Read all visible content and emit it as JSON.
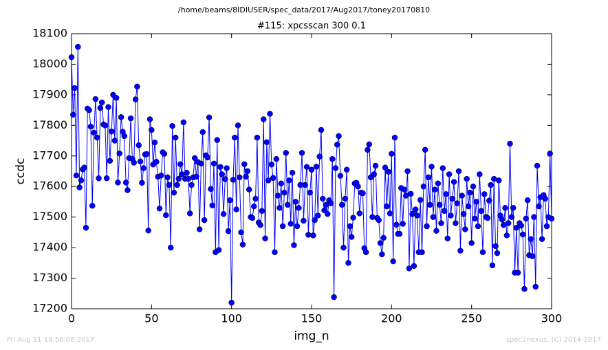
{
  "header": "/home/beams/8IDIUSER/spec_data/2017/Aug2017/toney20170810",
  "footer": {
    "left": "Fri Aug 11 19:58:08 2017",
    "right": "spec2nexus, (C) 2014-2017"
  },
  "chart_data": {
    "type": "line",
    "title": "#115: xpcsscan 300 0.1",
    "x_label": "img_n",
    "y_label": "ccdc",
    "xlim": [
      0,
      300
    ],
    "xticks": [
      0,
      50,
      100,
      150,
      200,
      250,
      300
    ],
    "ylim": [
      17200,
      18100
    ],
    "yticks": [
      17200,
      17300,
      17400,
      17500,
      17600,
      17700,
      17800,
      17900,
      18000,
      18100
    ],
    "x": [
      0,
      1,
      2,
      3,
      4,
      5,
      6,
      7,
      8,
      9,
      10,
      11,
      12,
      13,
      14,
      15,
      16,
      17,
      18,
      19,
      20,
      21,
      22,
      23,
      24,
      25,
      26,
      27,
      28,
      29,
      30,
      31,
      32,
      33,
      34,
      35,
      36,
      37,
      38,
      39,
      40,
      41,
      42,
      43,
      44,
      45,
      46,
      47,
      48,
      49,
      50,
      51,
      52,
      53,
      54,
      55,
      56,
      57,
      58,
      59,
      60,
      61,
      62,
      63,
      64,
      65,
      66,
      67,
      68,
      69,
      70,
      71,
      72,
      73,
      74,
      75,
      76,
      77,
      78,
      79,
      80,
      81,
      82,
      83,
      84,
      85,
      86,
      87,
      88,
      89,
      90,
      91,
      92,
      93,
      94,
      95,
      96,
      97,
      98,
      99,
      100,
      101,
      102,
      103,
      104,
      105,
      106,
      107,
      108,
      109,
      110,
      111,
      112,
      113,
      114,
      115,
      116,
      117,
      118,
      119,
      120,
      121,
      122,
      123,
      124,
      125,
      126,
      127,
      128,
      129,
      130,
      131,
      132,
      133,
      134,
      135,
      136,
      137,
      138,
      139,
      140,
      141,
      142,
      143,
      144,
      145,
      146,
      147,
      148,
      149,
      150,
      151,
      152,
      153,
      154,
      155,
      156,
      157,
      158,
      159,
      160,
      161,
      162,
      163,
      164,
      165,
      166,
      167,
      168,
      169,
      170,
      171,
      172,
      173,
      174,
      175,
      176,
      177,
      178,
      179,
      180,
      181,
      182,
      183,
      184,
      185,
      186,
      187,
      188,
      189,
      190,
      191,
      192,
      193,
      194,
      195,
      196,
      197,
      198,
      199,
      200,
      201,
      202,
      203,
      204,
      205,
      206,
      207,
      208,
      209,
      210,
      211,
      212,
      213,
      214,
      215,
      216,
      217,
      218,
      219,
      220,
      221,
      222,
      223,
      224,
      225,
      226,
      227,
      228,
      229,
      230,
      231,
      232,
      233,
      234,
      235,
      236,
      237,
      238,
      239,
      240,
      241,
      242,
      243,
      244,
      245,
      246,
      247,
      248,
      249,
      250,
      251,
      252,
      253,
      254,
      255,
      256,
      257,
      258,
      259,
      260,
      261,
      262,
      263,
      264,
      265,
      266,
      267,
      268,
      269,
      270,
      271,
      272,
      273,
      274,
      275,
      276,
      277,
      278,
      279,
      280,
      281,
      282,
      283,
      284,
      285,
      286,
      287,
      288,
      289,
      290,
      291,
      292,
      293,
      294,
      295,
      296,
      297,
      298,
      299,
      300
    ],
    "series": [
      {
        "color": "#0000ff",
        "values": [
          18023,
          17835,
          17922,
          17636,
          18057,
          17597,
          17620,
          17656,
          17662,
          17465,
          17855,
          17850,
          17796,
          17537,
          17776,
          17886,
          17760,
          17627,
          17857,
          17875,
          17803,
          17800,
          17627,
          17860,
          17684,
          17780,
          17900,
          17750,
          17890,
          17613,
          17708,
          17827,
          17779,
          17765,
          17613,
          17588,
          17693,
          17823,
          17690,
          17678,
          17885,
          17927,
          17735,
          17682,
          17612,
          17660,
          17705,
          17706,
          17456,
          17820,
          17785,
          17672,
          17744,
          17681,
          17632,
          17528,
          17636,
          17712,
          17707,
          17506,
          17630,
          17605,
          17400,
          17798,
          17580,
          17760,
          17605,
          17625,
          17673,
          17640,
          17810,
          17625,
          17645,
          17625,
          17512,
          17605,
          17630,
          17693,
          17632,
          17680,
          17460,
          17675,
          17778,
          17490,
          17702,
          17695,
          17826,
          17592,
          17538,
          17675,
          17385,
          17752,
          17392,
          17664,
          17640,
          17510,
          17624,
          17660,
          17454,
          17555,
          17220,
          17622,
          17760,
          17525,
          17800,
          17630,
          17450,
          17410,
          17673,
          17632,
          17650,
          17590,
          17500,
          17497,
          17535,
          17560,
          17760,
          17482,
          17474,
          17520,
          17820,
          17430,
          17745,
          17620,
          17838,
          17672,
          17628,
          17385,
          17690,
          17570,
          17530,
          17610,
          17470,
          17580,
          17710,
          17540,
          17620,
          17478,
          17645,
          17408,
          17550,
          17470,
          17530,
          17605,
          17710,
          17488,
          17605,
          17664,
          17442,
          17580,
          17655,
          17440,
          17490,
          17665,
          17505,
          17698,
          17785,
          17560,
          17522,
          17540,
          17510,
          17555,
          17545,
          17690,
          17238,
          17660,
          17737,
          17765,
          17635,
          17540,
          17400,
          17560,
          17655,
          17350,
          17470,
          17435,
          17498,
          17610,
          17612,
          17600,
          17512,
          17580,
          17578,
          17398,
          17385,
          17720,
          17738,
          17630,
          17500,
          17640,
          17668,
          17497,
          17490,
          17415,
          17378,
          17432,
          17662,
          17535,
          17648,
          17512,
          17707,
          17355,
          17760,
          17475,
          17445,
          17445,
          17595,
          17478,
          17590,
          17570,
          17650,
          17332,
          17576,
          17510,
          17340,
          17525,
          17505,
          17385,
          17556,
          17385,
          17600,
          17720,
          17470,
          17630,
          17540,
          17665,
          17500,
          17590,
          17455,
          17610,
          17540,
          17480,
          17660,
          17520,
          17575,
          17430,
          17640,
          17505,
          17560,
          17615,
          17480,
          17545,
          17650,
          17390,
          17570,
          17510,
          17460,
          17625,
          17535,
          17580,
          17415,
          17600,
          17495,
          17550,
          17470,
          17640,
          17520,
          17385,
          17575,
          17500,
          17497,
          17554,
          17605,
          17342,
          17625,
          17405,
          17382,
          17620,
          17505,
          17492,
          17474,
          17530,
          17440,
          17480,
          17740,
          17500,
          17530,
          17318,
          17465,
          17318,
          17480,
          17472,
          17443,
          17265,
          17495,
          17555,
          17375,
          17428,
          17372,
          17500,
          17272,
          17668,
          17535,
          17565,
          17428,
          17572,
          17560,
          17470,
          17500,
          17708,
          17495
        ]
      }
    ]
  }
}
